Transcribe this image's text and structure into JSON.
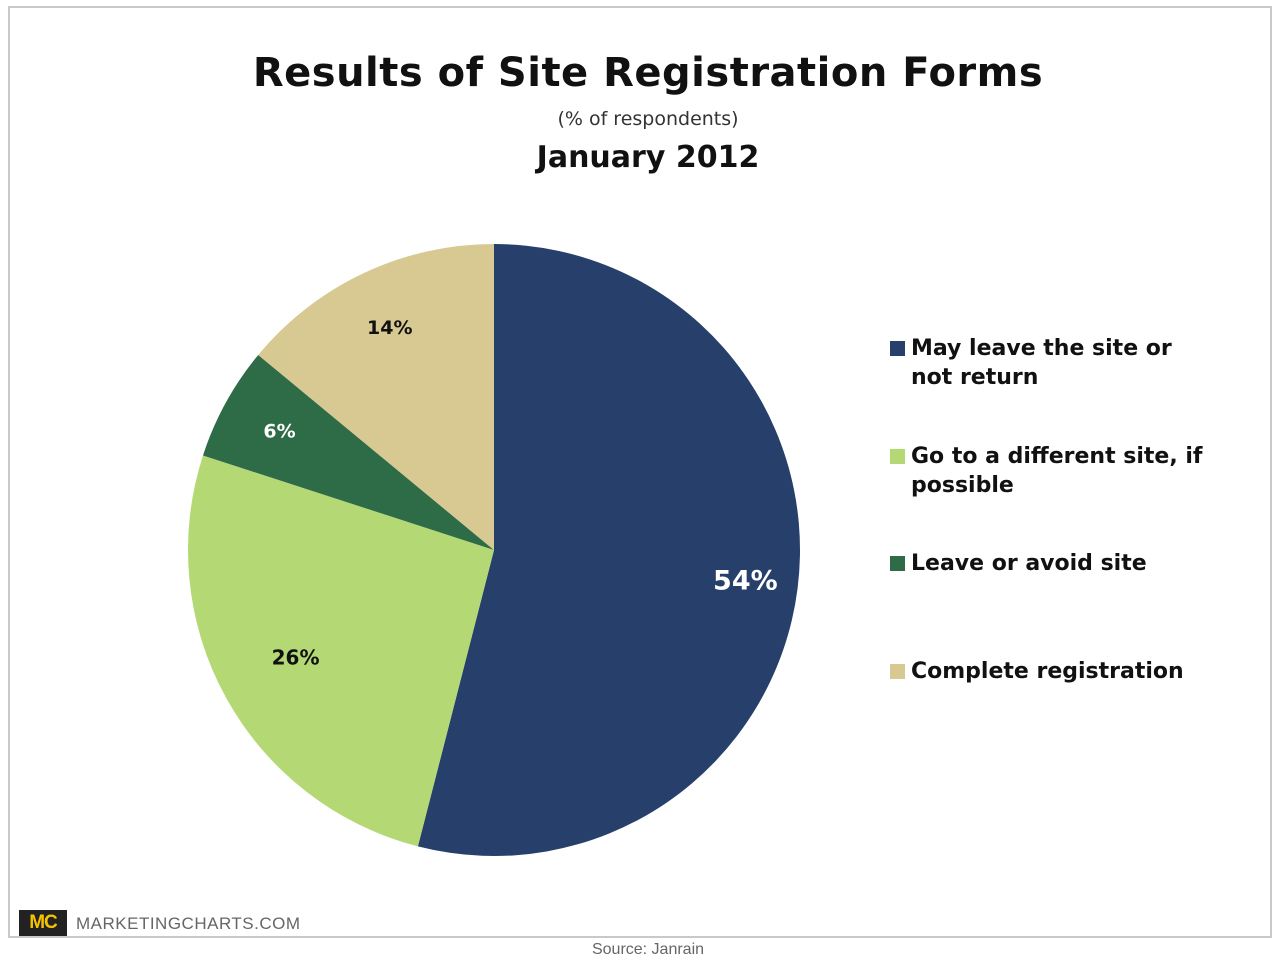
{
  "chart_data": {
    "type": "pie",
    "title": "Results of Site Registration Forms",
    "subtitle": "(% of respondents)",
    "subtitle2": "January 2012",
    "categories": [
      "May leave the site or not return",
      "Go to a different site, if possible",
      "Leave or avoid site",
      "Complete registration"
    ],
    "values": [
      54,
      26,
      6,
      14
    ],
    "labels": [
      "54%",
      "26%",
      "6%",
      "14%"
    ],
    "colors": [
      "#27406b",
      "#b4d974",
      "#2e6b47",
      "#d8c891"
    ],
    "label_colors": [
      "#ffffff",
      "#111111",
      "#ffffff",
      "#111111"
    ],
    "start_angle": "12 o'clock, clockwise",
    "legend_position": "right"
  },
  "branding": {
    "logo": "MC",
    "site": "MARKETINGCHARTS.COM",
    "source": "Source: Janrain"
  }
}
